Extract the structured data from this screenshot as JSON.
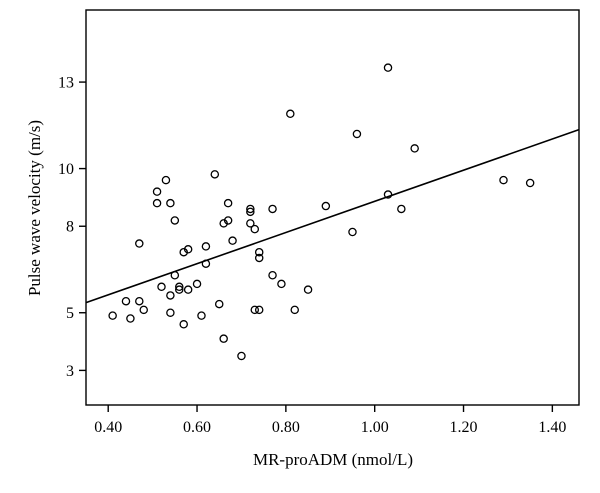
{
  "chart_data": {
    "type": "scatter",
    "xlabel": "MR-proADM (nmol/L)",
    "ylabel": "Pulse wave velocity (m/s)",
    "xlim": [
      0.35,
      1.46
    ],
    "ylim": [
      1.8,
      15.5
    ],
    "xticks": [
      0.4,
      0.6,
      0.8,
      1.0,
      1.2,
      1.4
    ],
    "xtick_labels": [
      "0.40",
      "0.60",
      "0.80",
      "1.00",
      "1.20",
      "1.40"
    ],
    "yticks": [
      3,
      5,
      8,
      10,
      13
    ],
    "ytick_labels": [
      "3",
      "5",
      "8",
      "10",
      "13"
    ],
    "grid": false,
    "legend": "none",
    "marker_color": "#000000",
    "line_color": "#000000",
    "series": [
      {
        "x": [
          0.41,
          0.44,
          0.45,
          0.47,
          0.47,
          0.48,
          0.51,
          0.51,
          0.52,
          0.53,
          0.54,
          0.54,
          0.54,
          0.55,
          0.55,
          0.56,
          0.56,
          0.57,
          0.57,
          0.58,
          0.58,
          0.6,
          0.61,
          0.62,
          0.62,
          0.64,
          0.65,
          0.66,
          0.66,
          0.67,
          0.67,
          0.68,
          0.7,
          0.72,
          0.72,
          0.72,
          0.73,
          0.73,
          0.74,
          0.74,
          0.74,
          0.77,
          0.77,
          0.79,
          0.81,
          0.82,
          0.85,
          0.89,
          0.95,
          0.96,
          1.03,
          1.03,
          1.06,
          1.09,
          1.29,
          1.35
        ],
        "y": [
          4.9,
          5.4,
          4.8,
          5.4,
          7.4,
          5.1,
          9.2,
          8.8,
          5.9,
          9.6,
          5.0,
          5.6,
          8.8,
          6.3,
          8.2,
          5.9,
          5.8,
          4.6,
          7.1,
          7.2,
          5.8,
          6.0,
          4.9,
          7.3,
          6.7,
          9.8,
          5.3,
          8.1,
          4.1,
          8.2,
          8.8,
          7.5,
          3.5,
          8.6,
          8.1,
          8.5,
          7.9,
          5.1,
          5.1,
          6.9,
          7.1,
          8.6,
          6.3,
          6.0,
          11.9,
          5.1,
          5.8,
          8.7,
          7.8,
          11.2,
          9.1,
          13.5,
          8.6,
          10.7,
          9.6,
          9.5
        ]
      }
    ],
    "regression": {
      "x": [
        0.35,
        1.46
      ],
      "y": [
        5.35,
        11.35
      ]
    }
  }
}
